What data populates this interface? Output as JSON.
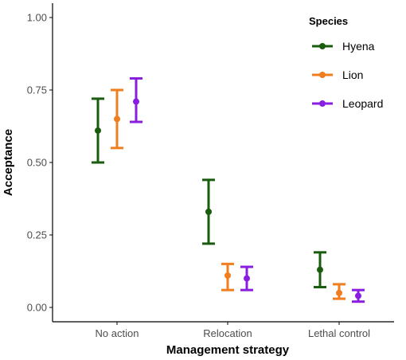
{
  "chart_data": {
    "type": "scatter",
    "xlabel": "Management strategy",
    "ylabel": "Acceptance",
    "ylim": [
      -0.05,
      1.05
    ],
    "yticks": [
      "0.00",
      "0.25",
      "0.50",
      "0.75",
      "1.00"
    ],
    "categories": [
      "No action",
      "Relocation",
      "Lethal control"
    ],
    "legend_title": "Species",
    "legend_position": "top-right",
    "grid": false,
    "series": [
      {
        "name": "Hyena",
        "color": "#1a5c0e",
        "values": [
          0.61,
          0.33,
          0.13
        ],
        "lower": [
          0.5,
          0.22,
          0.07
        ],
        "upper": [
          0.72,
          0.44,
          0.19
        ]
      },
      {
        "name": "Lion",
        "color": "#f07d1e",
        "values": [
          0.65,
          0.11,
          0.05
        ],
        "lower": [
          0.55,
          0.06,
          0.03
        ],
        "upper": [
          0.75,
          0.15,
          0.08
        ]
      },
      {
        "name": "Leopard",
        "color": "#8a1ee0",
        "values": [
          0.71,
          0.1,
          0.04
        ],
        "lower": [
          0.64,
          0.06,
          0.02
        ],
        "upper": [
          0.79,
          0.14,
          0.06
        ]
      }
    ]
  }
}
